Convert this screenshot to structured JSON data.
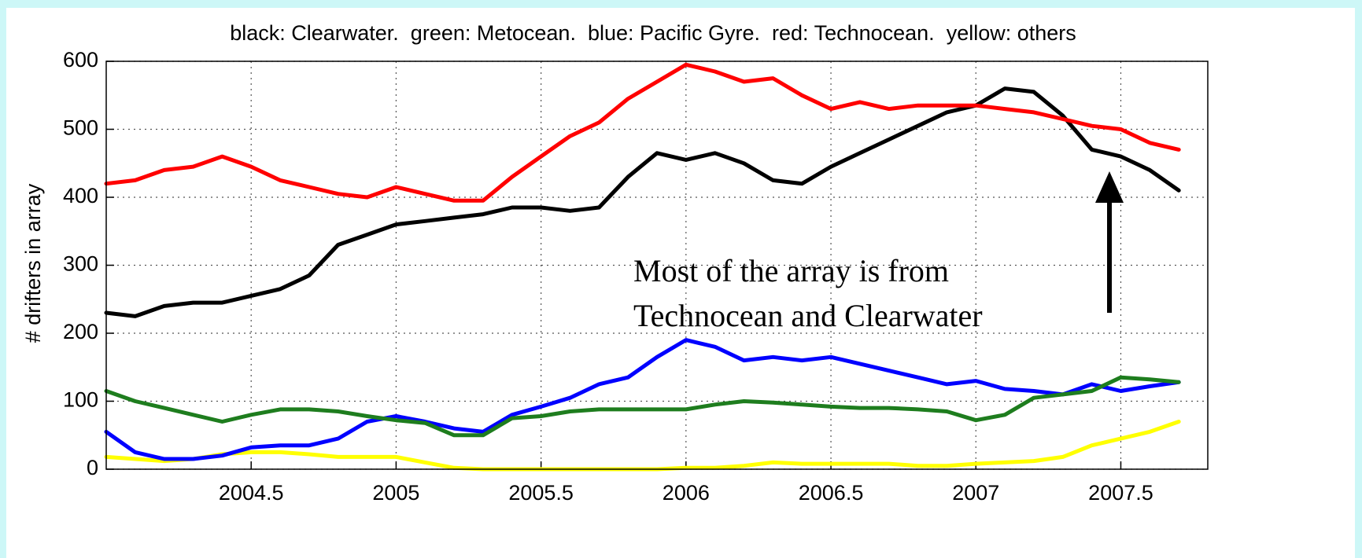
{
  "chart_data": {
    "type": "line",
    "title": "black: Clearwater.  green: Metocean.  blue: Pacific Gyre.  red: Technocean.  yellow: others",
    "y_label": "# drifters in array",
    "annotation": [
      "Most of the array is from",
      "Technocean and Clearwater"
    ],
    "x": [
      2004.0,
      2004.1,
      2004.2,
      2004.3,
      2004.4,
      2004.5,
      2004.6,
      2004.7,
      2004.8,
      2004.9,
      2005.0,
      2005.1,
      2005.2,
      2005.3,
      2005.4,
      2005.5,
      2005.6,
      2005.7,
      2005.8,
      2005.9,
      2006.0,
      2006.1,
      2006.2,
      2006.3,
      2006.4,
      2006.5,
      2006.6,
      2006.7,
      2006.8,
      2006.9,
      2007.0,
      2007.1,
      2007.2,
      2007.3,
      2007.4,
      2007.5,
      2007.6,
      2007.7
    ],
    "series": [
      {
        "color": "#ff0000",
        "values": [
          420,
          425,
          440,
          445,
          460,
          445,
          425,
          415,
          405,
          400,
          415,
          405,
          395,
          395,
          430,
          460,
          490,
          510,
          545,
          570,
          595,
          585,
          570,
          575,
          550,
          530,
          540,
          530,
          535,
          535,
          535,
          530,
          525,
          515,
          505,
          500,
          480,
          470
        ]
      },
      {
        "color": "#000000",
        "values": [
          230,
          225,
          240,
          245,
          245,
          255,
          265,
          285,
          330,
          345,
          360,
          365,
          370,
          375,
          385,
          385,
          380,
          385,
          430,
          465,
          455,
          465,
          450,
          425,
          420,
          445,
          465,
          485,
          505,
          525,
          535,
          560,
          555,
          520,
          470,
          460,
          440,
          410
        ]
      },
      {
        "color": "#1e7d1e",
        "values": [
          115,
          100,
          90,
          80,
          70,
          80,
          88,
          88,
          85,
          78,
          72,
          68,
          50,
          50,
          75,
          78,
          85,
          88,
          88,
          88,
          88,
          95,
          100,
          98,
          95,
          92,
          90,
          90,
          88,
          85,
          72,
          80,
          105,
          110,
          115,
          135,
          132,
          128
        ]
      },
      {
        "color": "#0000ff",
        "values": [
          55,
          25,
          15,
          15,
          20,
          32,
          35,
          35,
          45,
          70,
          78,
          70,
          60,
          55,
          80,
          92,
          105,
          125,
          135,
          165,
          190,
          180,
          160,
          165,
          160,
          165,
          155,
          145,
          135,
          125,
          130,
          118,
          115,
          110,
          125,
          115,
          122,
          128
        ]
      },
      {
        "color": "#ffff00",
        "values": [
          18,
          15,
          12,
          15,
          22,
          25,
          25,
          22,
          18,
          18,
          18,
          10,
          2,
          0,
          0,
          0,
          0,
          0,
          0,
          0,
          2,
          2,
          5,
          10,
          8,
          8,
          8,
          8,
          5,
          5,
          8,
          10,
          12,
          18,
          35,
          45,
          55,
          70
        ]
      }
    ],
    "xlim": [
      2004.0,
      2007.8
    ],
    "ylim": [
      0,
      600
    ],
    "xticks": [
      2004.5,
      2005,
      2005.5,
      2006,
      2006.5,
      2007,
      2007.5
    ],
    "yticks": [
      0,
      100,
      200,
      300,
      400,
      500,
      600
    ],
    "grid": true
  }
}
